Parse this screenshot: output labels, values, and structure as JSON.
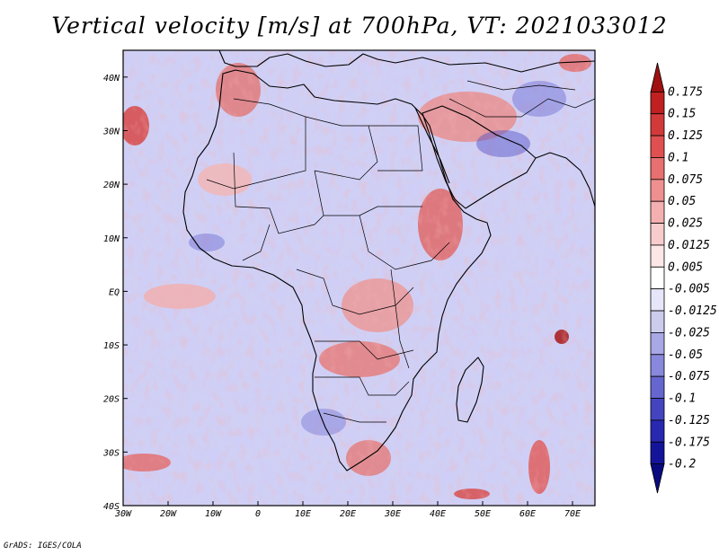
{
  "title": "Vertical velocity [m/s] at 700hPa, VT: 2021033012",
  "credit": "GrADS: IGES/COLA",
  "map": {
    "region": "Africa",
    "lon_range": [
      -30,
      75
    ],
    "lat_range": [
      -40,
      45
    ],
    "x_ticks": [
      "30W",
      "20W",
      "10W",
      "0",
      "10E",
      "20E",
      "30E",
      "40E",
      "50E",
      "60E",
      "70E"
    ],
    "y_ticks": [
      "40N",
      "30N",
      "20N",
      "10N",
      "EQ",
      "10S",
      "20S",
      "30S",
      "40S"
    ],
    "x_tick_values": [
      -30,
      -20,
      -10,
      0,
      10,
      20,
      30,
      40,
      50,
      60,
      70
    ],
    "y_tick_values": [
      40,
      30,
      20,
      10,
      0,
      -10,
      -20,
      -30,
      -40
    ]
  },
  "colorbar": {
    "labels": [
      "0.175",
      "0.15",
      "0.125",
      "0.1",
      "0.075",
      "0.05",
      "0.025",
      "0.0125",
      "0.005",
      "-0.005",
      "-0.0125",
      "-0.025",
      "-0.05",
      "-0.075",
      "-0.1",
      "-0.125",
      "-0.175",
      "-0.2"
    ],
    "colors": [
      "#a01010",
      "#c02020",
      "#d23a3a",
      "#e05050",
      "#e87070",
      "#ef9090",
      "#f4b0b0",
      "#f8cccc",
      "#fce6e6",
      "#ffffff",
      "#e6e6fa",
      "#cccced",
      "#a8a8e6",
      "#8888dc",
      "#6666d0",
      "#4444c0",
      "#2828b0",
      "#14149a",
      "#0a0a80"
    ]
  }
}
